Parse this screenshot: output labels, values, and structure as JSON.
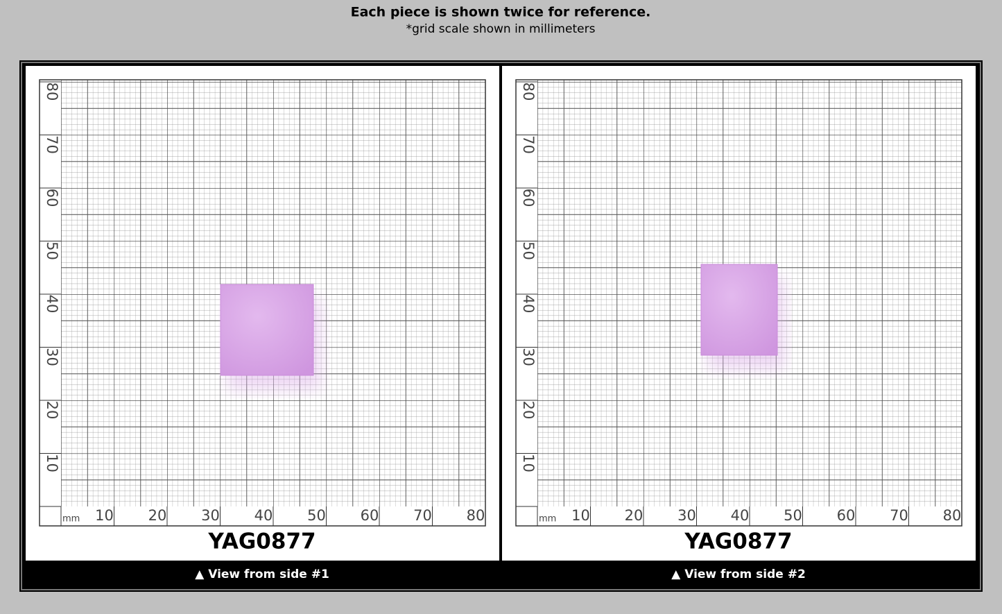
{
  "header": {
    "title": "Each piece is shown twice for reference.",
    "subtitle": "*grid scale shown in millimeters"
  },
  "panels": [
    {
      "unit": "mm",
      "x_labels": [
        "10",
        "20",
        "30",
        "40",
        "50",
        "60",
        "70",
        "80"
      ],
      "y_labels": [
        "10",
        "20",
        "30",
        "40",
        "50",
        "60",
        "70",
        "80"
      ],
      "code": "YAG0877",
      "caption": "▲ View from side #1"
    },
    {
      "unit": "mm",
      "x_labels": [
        "10",
        "20",
        "30",
        "40",
        "50",
        "60",
        "70",
        "80"
      ],
      "y_labels": [
        "10",
        "20",
        "30",
        "40",
        "50",
        "60",
        "70",
        "80"
      ],
      "code": "YAG0877",
      "caption": "▲ View from side #2"
    }
  ]
}
